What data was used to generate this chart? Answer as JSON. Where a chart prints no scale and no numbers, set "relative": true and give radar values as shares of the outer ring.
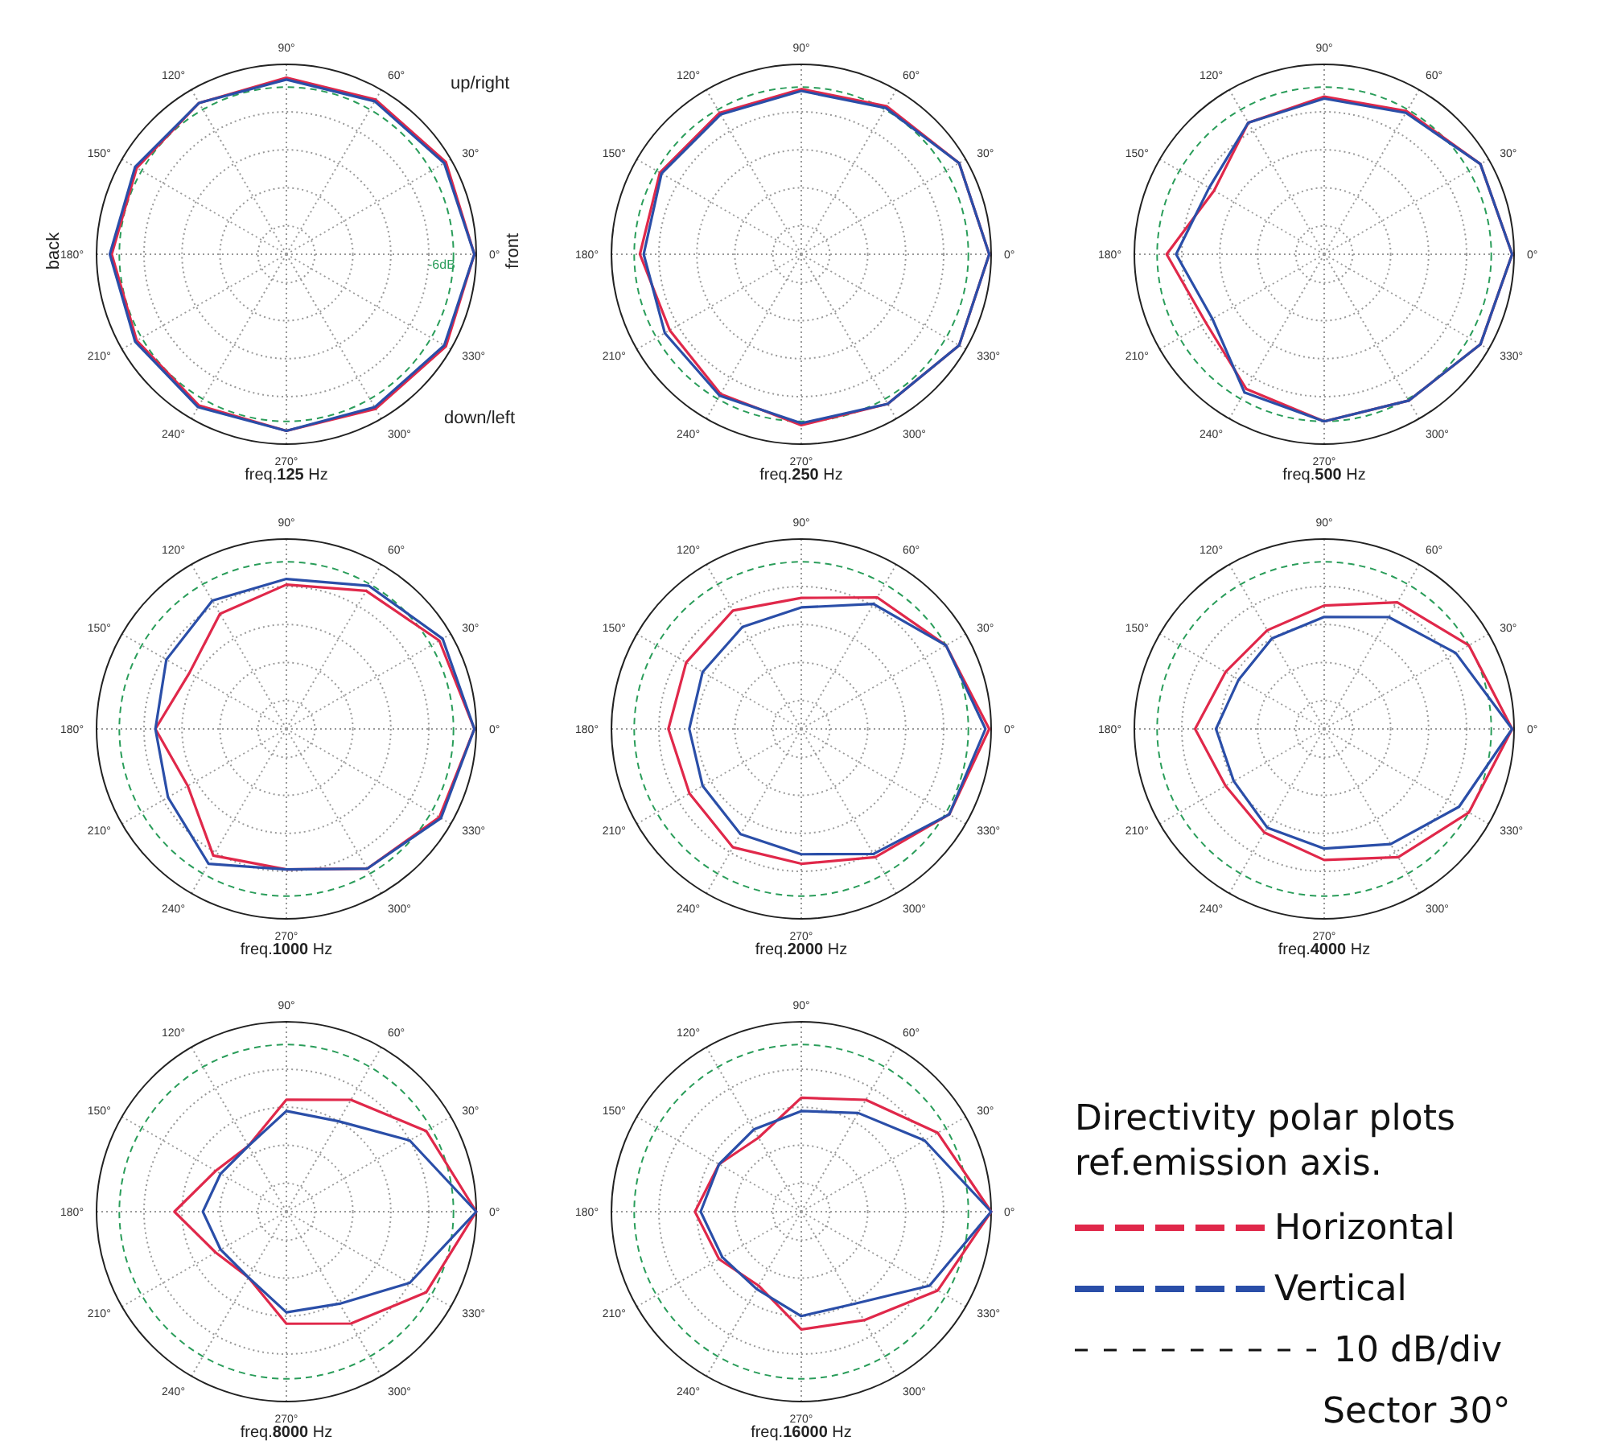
{
  "chart_data": [
    {
      "type": "radar",
      "title": "freq.125 Hz",
      "relative": true,
      "grid": true,
      "legend": false,
      "categories": [
        "90°",
        "60°",
        "30°",
        "0°",
        "330°",
        "300°",
        "270°",
        "240°",
        "210°",
        "180°",
        "150°",
        "120°"
      ],
      "series": [
        {
          "color": "#e0284a",
          "line_style": "solid",
          "values": [
            0.93,
            0.94,
            0.97,
            0.99,
            0.97,
            0.94,
            0.93,
            0.92,
            0.91,
            0.92,
            0.91,
            0.92
          ]
        },
        {
          "color": "#2a4ea8",
          "line_style": "solid",
          "values": [
            0.92,
            0.93,
            0.96,
            0.99,
            0.96,
            0.93,
            0.93,
            0.93,
            0.92,
            0.93,
            0.92,
            0.92
          ]
        }
      ],
      "annotations": [
        "up/right",
        "down/left",
        "back",
        "front",
        "-6dB"
      ]
    },
    {
      "type": "radar",
      "title": "freq.250 Hz",
      "relative": true,
      "grid": true,
      "legend": false,
      "categories": [
        "90°",
        "60°",
        "30°",
        "0°",
        "330°",
        "300°",
        "270°",
        "240°",
        "210°",
        "180°",
        "150°",
        "120°"
      ],
      "series": [
        {
          "color": "#e0284a",
          "line_style": "solid",
          "values": [
            0.87,
            0.9,
            0.96,
            0.99,
            0.96,
            0.91,
            0.9,
            0.85,
            0.8,
            0.85,
            0.86,
            0.86
          ]
        },
        {
          "color": "#2a4ea8",
          "line_style": "solid",
          "values": [
            0.86,
            0.89,
            0.96,
            0.99,
            0.96,
            0.91,
            0.89,
            0.86,
            0.83,
            0.83,
            0.85,
            0.85
          ]
        }
      ]
    },
    {
      "type": "radar",
      "title": "freq.500 Hz",
      "relative": true,
      "grid": true,
      "legend": false,
      "categories": [
        "90°",
        "60°",
        "30°",
        "0°",
        "330°",
        "300°",
        "270°",
        "240°",
        "210°",
        "180°",
        "150°",
        "120°"
      ],
      "series": [
        {
          "color": "#e0284a",
          "line_style": "solid",
          "values": [
            0.83,
            0.87,
            0.95,
            0.99,
            0.95,
            0.89,
            0.88,
            0.82,
            0.72,
            0.83,
            0.67,
            0.8
          ]
        },
        {
          "color": "#2a4ea8",
          "line_style": "solid",
          "values": [
            0.82,
            0.86,
            0.95,
            0.99,
            0.95,
            0.89,
            0.88,
            0.84,
            0.68,
            0.78,
            0.7,
            0.8
          ]
        }
      ]
    },
    {
      "type": "radar",
      "title": "freq.1000 Hz",
      "relative": true,
      "grid": true,
      "legend": false,
      "categories": [
        "90°",
        "60°",
        "30°",
        "0°",
        "330°",
        "300°",
        "270°",
        "240°",
        "210°",
        "180°",
        "150°",
        "120°"
      ],
      "series": [
        {
          "color": "#e0284a",
          "line_style": "solid",
          "values": [
            0.76,
            0.84,
            0.93,
            0.99,
            0.93,
            0.85,
            0.74,
            0.77,
            0.6,
            0.69,
            0.59,
            0.7
          ]
        },
        {
          "color": "#2a4ea8",
          "line_style": "solid",
          "values": [
            0.79,
            0.87,
            0.95,
            0.99,
            0.94,
            0.85,
            0.74,
            0.82,
            0.72,
            0.69,
            0.73,
            0.78
          ]
        }
      ]
    },
    {
      "type": "radar",
      "title": "freq.2000 Hz",
      "relative": true,
      "grid": true,
      "legend": false,
      "categories": [
        "90°",
        "60°",
        "30°",
        "0°",
        "330°",
        "300°",
        "270°",
        "240°",
        "210°",
        "180°",
        "150°",
        "120°"
      ],
      "series": [
        {
          "color": "#e0284a",
          "line_style": "solid",
          "values": [
            0.69,
            0.8,
            0.88,
            0.99,
            0.9,
            0.78,
            0.71,
            0.72,
            0.68,
            0.7,
            0.7,
            0.72
          ]
        },
        {
          "color": "#2a4ea8",
          "line_style": "solid",
          "values": [
            0.64,
            0.76,
            0.88,
            0.97,
            0.9,
            0.76,
            0.66,
            0.64,
            0.6,
            0.59,
            0.6,
            0.62
          ]
        }
      ]
    },
    {
      "type": "radar",
      "title": "freq.4000 Hz",
      "relative": true,
      "grid": true,
      "legend": false,
      "categories": [
        "90°",
        "60°",
        "30°",
        "0°",
        "330°",
        "300°",
        "270°",
        "240°",
        "210°",
        "180°",
        "150°",
        "120°"
      ],
      "series": [
        {
          "color": "#e0284a",
          "line_style": "solid",
          "values": [
            0.65,
            0.77,
            0.88,
            0.99,
            0.88,
            0.78,
            0.69,
            0.63,
            0.6,
            0.68,
            0.6,
            0.6
          ]
        },
        {
          "color": "#2a4ea8",
          "line_style": "solid",
          "values": [
            0.59,
            0.68,
            0.8,
            0.99,
            0.82,
            0.7,
            0.63,
            0.6,
            0.55,
            0.57,
            0.52,
            0.55
          ]
        }
      ]
    },
    {
      "type": "radar",
      "title": "freq.8000 Hz",
      "relative": true,
      "grid": true,
      "legend": false,
      "categories": [
        "90°",
        "60°",
        "30°",
        "0°",
        "330°",
        "300°",
        "270°",
        "240°",
        "210°",
        "180°",
        "150°",
        "120°"
      ],
      "series": [
        {
          "color": "#e0284a",
          "line_style": "solid",
          "values": [
            0.59,
            0.68,
            0.85,
            1,
            0.85,
            0.68,
            0.59,
            0.4,
            0.43,
            0.59,
            0.43,
            0.4
          ]
        },
        {
          "color": "#2a4ea8",
          "line_style": "solid",
          "values": [
            0.53,
            0.55,
            0.75,
            1,
            0.75,
            0.56,
            0.53,
            0.4,
            0.4,
            0.44,
            0.4,
            0.4
          ]
        }
      ]
    },
    {
      "type": "radar",
      "title": "freq.16000 Hz",
      "relative": true,
      "grid": true,
      "legend": "right",
      "legend_title": "Directivity polar plots ref.emission axis.",
      "categories": [
        "90°",
        "60°",
        "30°",
        "0°",
        "330°",
        "300°",
        "270°",
        "240°",
        "210°",
        "180°",
        "150°",
        "120°"
      ],
      "series": [
        {
          "name": "Horizontal",
          "color": "#e0284a",
          "line_style": "solid",
          "values": [
            0.6,
            0.68,
            0.83,
            1,
            0.83,
            0.66,
            0.62,
            0.45,
            0.5,
            0.56,
            0.5,
            0.45
          ]
        },
        {
          "name": "Vertical",
          "color": "#2a4ea8",
          "line_style": "solid",
          "values": [
            0.53,
            0.6,
            0.75,
            1,
            0.78,
            0.56,
            0.55,
            0.47,
            0.48,
            0.53,
            0.5,
            0.5
          ]
        }
      ],
      "annotations": [
        "10 dB/div",
        "Sector 30°"
      ]
    }
  ]
}
